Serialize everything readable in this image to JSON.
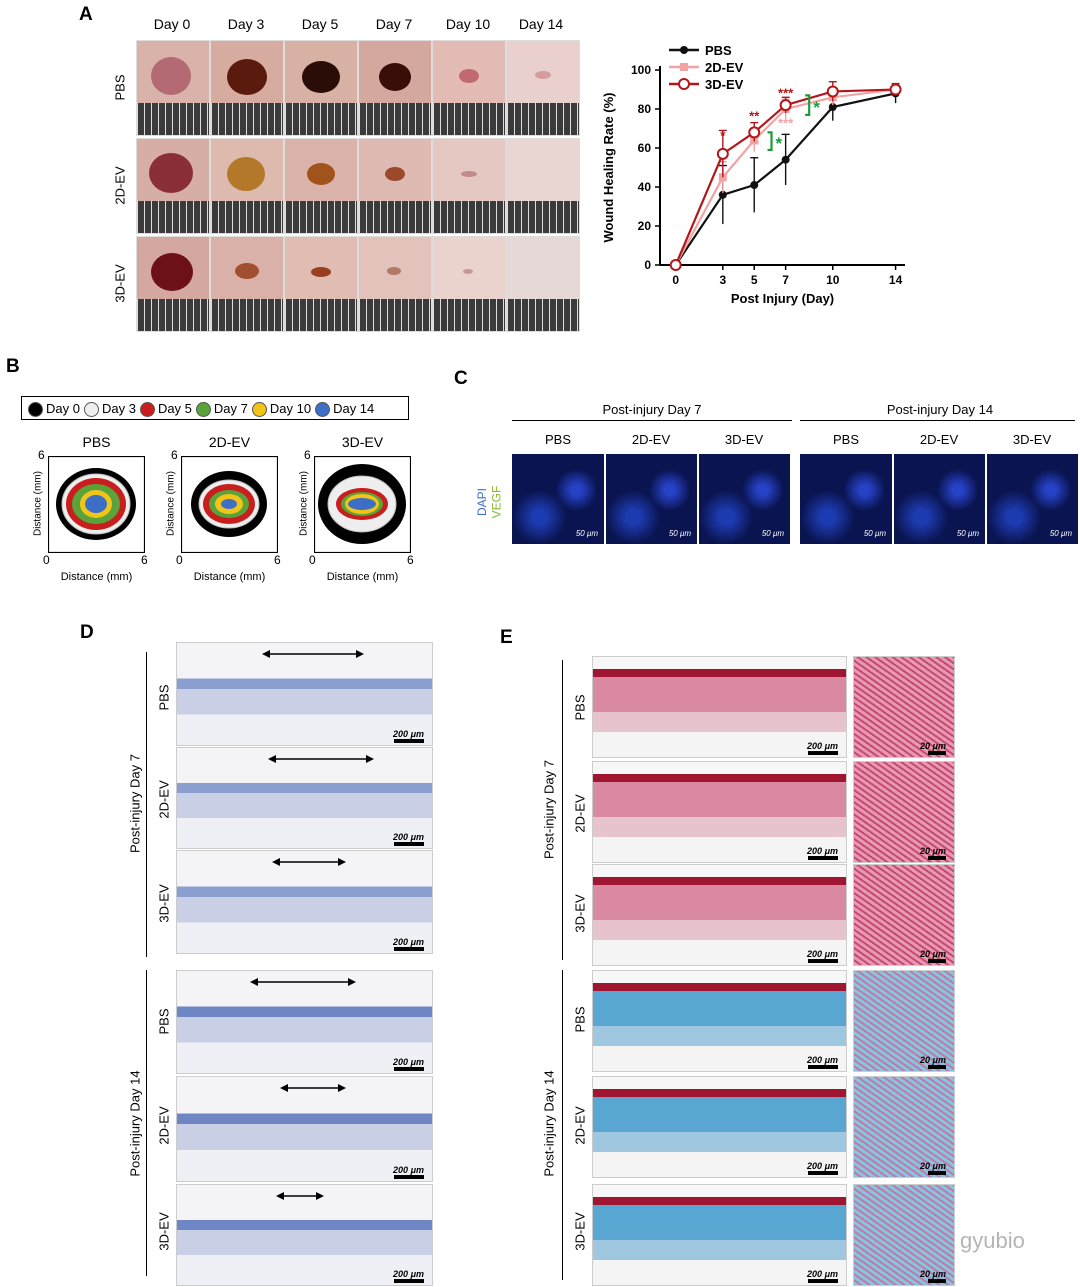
{
  "panelA": {
    "letter": "A",
    "days": [
      "Day 0",
      "Day 3",
      "Day 5",
      "Day 7",
      "Day 10",
      "Day 14"
    ],
    "rows": [
      "PBS",
      "2D-EV",
      "3D-EV"
    ]
  },
  "chart_data": {
    "type": "line",
    "xlabel": "Post Injury (Day)",
    "ylabel": "Wound Healing Rate (%)",
    "x": [
      0,
      3,
      5,
      7,
      10,
      14
    ],
    "ylim": [
      0,
      100
    ],
    "yticks": [
      0,
      20,
      40,
      60,
      80,
      100
    ],
    "series": [
      {
        "name": "PBS",
        "color": "#111111",
        "values": [
          0,
          36,
          41,
          54,
          81,
          88
        ],
        "err": [
          0,
          15,
          14,
          13,
          7,
          5
        ]
      },
      {
        "name": "2D-EV",
        "color": "#f2a3a3",
        "values": [
          0,
          45,
          64,
          80,
          86,
          90
        ],
        "err": [
          0,
          8,
          6,
          5,
          4,
          3
        ]
      },
      {
        "name": "3D-EV",
        "color": "#b3161b",
        "values": [
          0,
          57,
          68,
          82,
          89,
          90
        ],
        "err": [
          0,
          12,
          5,
          4,
          5,
          3
        ]
      }
    ],
    "sig": {
      "3D_vs_PBS": [
        "*",
        "**",
        "***"
      ],
      "2D_vs_PBS": [
        "**",
        "***"
      ],
      "bracket": [
        "*",
        "*"
      ]
    }
  },
  "panelB": {
    "letter": "B",
    "legend": [
      {
        "label": "Day 0",
        "color": "#000000"
      },
      {
        "label": "Day 3",
        "color": "#eeeeee"
      },
      {
        "label": "Day 5",
        "color": "#c81e1e"
      },
      {
        "label": "Day 7",
        "color": "#5aa33a"
      },
      {
        "label": "Day 10",
        "color": "#f0c419"
      },
      {
        "label": "Day 14",
        "color": "#3d6fc6"
      }
    ],
    "plots": [
      "PBS",
      "2D-EV",
      "3D-EV"
    ],
    "axis_label": "Distance (mm)",
    "tick_0": "0",
    "tick_6": "6"
  },
  "panelC": {
    "letter": "C",
    "groups": [
      "Post-injury Day 7",
      "Post-injury Day 14"
    ],
    "cols": [
      "PBS",
      "2D-EV",
      "3D-EV"
    ],
    "stain_dapi": "DAPI",
    "stain_vegf": "VEGF",
    "scale": "50 μm"
  },
  "panelD": {
    "letter": "D",
    "groups": [
      "Post-injury Day 7",
      "Post-injury Day 14"
    ],
    "rows": [
      "PBS",
      "2D-EV",
      "3D-EV"
    ],
    "scale": "200 μm"
  },
  "panelE": {
    "letter": "E",
    "groups": [
      "Post-injury Day 7",
      "Post-injury Day 14"
    ],
    "rows": [
      "PBS",
      "2D-EV",
      "3D-EV"
    ],
    "scale_main": "200 μm",
    "scale_zoom": "20 μm"
  },
  "watermark": "gyubio"
}
